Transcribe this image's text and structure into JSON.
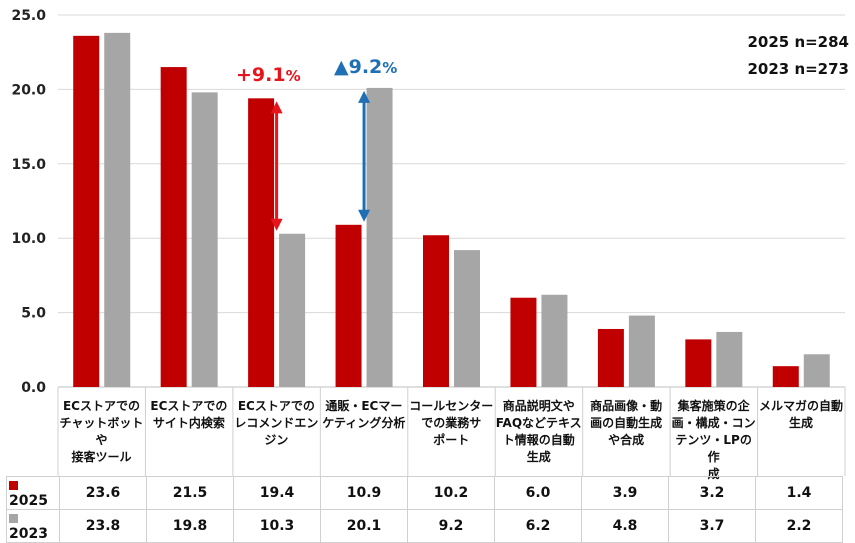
{
  "chart_data": {
    "type": "bar",
    "categories": [
      [
        "ECストアでの",
        "チャットボットや",
        "接客ツール"
      ],
      [
        "ECストアでの",
        "サイト内検索"
      ],
      [
        "ECストアでの",
        "レコメンドエン",
        "ジン"
      ],
      [
        "通販・ECマー",
        "ケティング分析"
      ],
      [
        "コールセンター",
        "での業務サ",
        "ポート"
      ],
      [
        "商品説明文や",
        "FAQなどテキス",
        "ト情報の自動",
        "生成"
      ],
      [
        "商品画像・動",
        "画の自動生成",
        "や合成"
      ],
      [
        "集客施策の企",
        "画・構成・コン",
        "テンツ・LPの作",
        "成"
      ],
      [
        "メルマガの自動",
        "生成"
      ]
    ],
    "series": [
      {
        "name": "2025",
        "color": "#c00000",
        "values": [
          23.6,
          21.5,
          19.4,
          10.9,
          10.2,
          6.0,
          3.9,
          3.2,
          1.4
        ],
        "display": [
          "23.6",
          "21.5",
          "19.4",
          "10.9",
          "10.2",
          "6.0",
          "3.9",
          "3.2",
          "1.4"
        ]
      },
      {
        "name": "2023",
        "color": "#a6a6a6",
        "values": [
          23.8,
          19.8,
          10.3,
          20.1,
          9.2,
          6.2,
          4.8,
          3.7,
          2.2
        ],
        "display": [
          "23.8",
          "19.8",
          "10.3",
          "20.1",
          "9.2",
          "6.2",
          "4.8",
          "3.7",
          "2.2"
        ]
      }
    ],
    "ylim": [
      0,
      25
    ],
    "yticks": [
      "0.0",
      "5.0",
      "10.0",
      "15.0",
      "20.0",
      "25.0"
    ],
    "ytick_values": [
      0,
      5,
      10,
      15,
      20,
      25
    ],
    "grid": true,
    "annotations": {
      "sample_2025": "2025 n=284",
      "sample_2023": "2023 n=273",
      "callout_up": {
        "text": "+9.1",
        "unit": "%",
        "color": "#e8141b",
        "category_index": 2
      },
      "callout_down": {
        "text": "▲9.2",
        "unit": "%",
        "color": "#1f6fb5",
        "category_index": 3
      }
    }
  }
}
